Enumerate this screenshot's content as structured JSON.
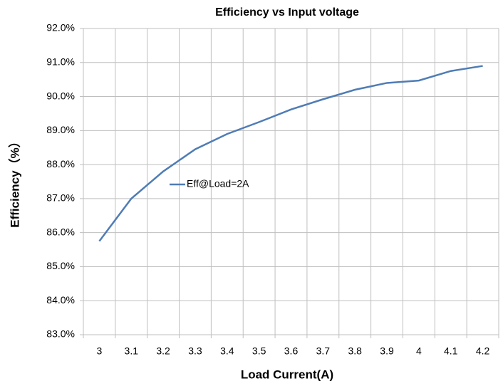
{
  "chart_data": {
    "type": "line",
    "title": "Efficiency vs Input voltage",
    "x_label": "Load Current(A)",
    "y_label": "Efficiency（%）",
    "categories": [
      "3",
      "3.1",
      "3.2",
      "3.3",
      "3.4",
      "3.5",
      "3.6",
      "3.7",
      "3.8",
      "3.9",
      "4",
      "4.1",
      "4.2"
    ],
    "series": [
      {
        "name": "Eff@Load=2A",
        "color": "#4f7cb5",
        "values": [
          85.75,
          87.0,
          87.8,
          88.45,
          88.9,
          89.25,
          89.62,
          89.92,
          90.2,
          90.4,
          90.47,
          90.75,
          90.9
        ]
      }
    ],
    "ylim": [
      83,
      92
    ],
    "yticks": [
      {
        "value": 83,
        "label": "83.0%"
      },
      {
        "value": 84,
        "label": "84.0%"
      },
      {
        "value": 85,
        "label": "85.0%"
      },
      {
        "value": 86,
        "label": "86.0%"
      },
      {
        "value": 87,
        "label": "87.0%"
      },
      {
        "value": 88,
        "label": "88.0%"
      },
      {
        "value": 89,
        "label": "89.0%"
      },
      {
        "value": 90,
        "label": "90.0%"
      },
      {
        "value": 91,
        "label": "91.0%"
      },
      {
        "value": 92,
        "label": "92.0%"
      }
    ],
    "grid": true,
    "legend": "inside-left"
  }
}
